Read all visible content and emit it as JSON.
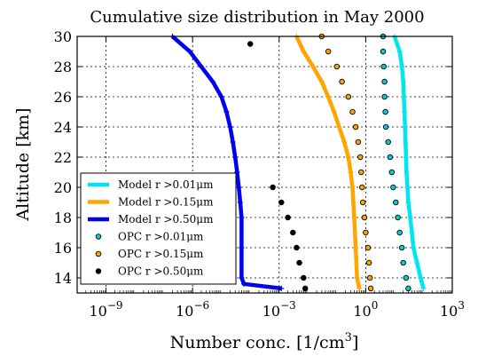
{
  "chart_data": {
    "type": "line",
    "title": "Cumulative size distribution in May 2000",
    "xlabel_main": "Number conc. [1/cm",
    "xlabel_sup": "3",
    "xlabel_end": "]",
    "ylabel": "Altitude [km]",
    "x_scale": "log",
    "xlim": [
      1e-10,
      1000
    ],
    "ylim": [
      13,
      30
    ],
    "x_ticks": [
      {
        "value": 1e-09,
        "base": "10",
        "exp": "−9"
      },
      {
        "value": 1e-06,
        "base": "10",
        "exp": "−6"
      },
      {
        "value": 0.001,
        "base": "10",
        "exp": "−3"
      },
      {
        "value": 1,
        "base": "10",
        "exp": "0"
      },
      {
        "value": 1000,
        "base": "10",
        "exp": "3"
      }
    ],
    "y_ticks": [
      14,
      16,
      18,
      20,
      22,
      24,
      26,
      28,
      30
    ],
    "grid": true,
    "legend_position": "lower-left",
    "series": [
      {
        "name": "Model r >0.01μm",
        "kind": "line",
        "color": "#00e5ee",
        "points": [
          [
            100.0,
            13.3
          ],
          [
            80,
            14
          ],
          [
            60,
            15
          ],
          [
            45,
            16
          ],
          [
            40,
            17
          ],
          [
            35,
            18
          ],
          [
            30,
            19
          ],
          [
            28,
            20
          ],
          [
            26,
            21
          ],
          [
            25,
            22
          ],
          [
            24,
            23
          ],
          [
            23,
            24
          ],
          [
            22,
            25
          ],
          [
            21,
            26
          ],
          [
            20,
            27
          ],
          [
            18,
            28
          ],
          [
            15,
            29
          ],
          [
            10,
            30
          ]
        ]
      },
      {
        "name": "Model r >0.15μm",
        "kind": "line",
        "color": "#ffa500",
        "points": [
          [
            0.6,
            13.3
          ],
          [
            0.5,
            14
          ],
          [
            0.45,
            16
          ],
          [
            0.4,
            18
          ],
          [
            0.35,
            20
          ],
          [
            0.3,
            21
          ],
          [
            0.25,
            22
          ],
          [
            0.18,
            23
          ],
          [
            0.12,
            24
          ],
          [
            0.08,
            25
          ],
          [
            0.05,
            26
          ],
          [
            0.03,
            27
          ],
          [
            0.015,
            28
          ],
          [
            0.007,
            29
          ],
          [
            0.004,
            30
          ]
        ]
      },
      {
        "name": "Model r >0.50μm",
        "kind": "line",
        "color": "#0000ee",
        "points": [
          [
            0.0012,
            13.3
          ],
          [
            6e-05,
            13.6
          ],
          [
            5e-05,
            14
          ],
          [
            5e-05,
            16
          ],
          [
            5e-05,
            18
          ],
          [
            4.5e-05,
            19
          ],
          [
            4e-05,
            20
          ],
          [
            3.5e-05,
            21
          ],
          [
            3e-05,
            22
          ],
          [
            2.5e-05,
            23
          ],
          [
            2e-05,
            24
          ],
          [
            1.5e-05,
            25
          ],
          [
            1e-05,
            26
          ],
          [
            5e-06,
            27
          ],
          [
            2e-06,
            28
          ],
          [
            8e-07,
            29
          ],
          [
            2e-07,
            30
          ]
        ]
      },
      {
        "name": "OPC r >0.01μm",
        "kind": "points",
        "color": "#00d0d0",
        "points": [
          [
            30,
            13.3
          ],
          [
            25,
            14
          ],
          [
            20,
            15
          ],
          [
            18,
            16
          ],
          [
            15,
            17
          ],
          [
            13,
            18
          ],
          [
            11,
            19
          ],
          [
            9,
            20
          ],
          [
            8,
            21
          ],
          [
            7,
            22
          ],
          [
            6,
            23
          ],
          [
            5,
            24
          ],
          [
            4.8,
            25
          ],
          [
            4.5,
            26
          ],
          [
            4.5,
            27
          ],
          [
            4.2,
            28
          ],
          [
            4,
            29
          ],
          [
            4,
            30
          ]
        ]
      },
      {
        "name": "OPC r >0.15μm",
        "kind": "points",
        "color": "#ffa500",
        "points": [
          [
            1.5,
            13.3
          ],
          [
            1.4,
            14
          ],
          [
            1.3,
            15
          ],
          [
            1.2,
            16
          ],
          [
            1.0,
            17
          ],
          [
            0.9,
            18
          ],
          [
            0.8,
            19
          ],
          [
            0.75,
            20
          ],
          [
            0.7,
            21
          ],
          [
            0.65,
            22
          ],
          [
            0.55,
            23
          ],
          [
            0.45,
            24
          ],
          [
            0.35,
            25
          ],
          [
            0.25,
            26
          ],
          [
            0.15,
            27
          ],
          [
            0.1,
            28
          ],
          [
            0.05,
            29
          ],
          [
            0.03,
            30
          ]
        ]
      },
      {
        "name": "OPC r >0.50μm",
        "kind": "points",
        "color": "#000000",
        "points": [
          [
            0.008,
            13.3
          ],
          [
            0.007,
            14
          ],
          [
            0.005,
            15
          ],
          [
            0.004,
            16
          ],
          [
            0.003,
            17
          ],
          [
            0.002,
            18
          ],
          [
            0.0012,
            19
          ],
          [
            0.0006,
            20
          ],
          [
            0.0001,
            29.5
          ]
        ]
      }
    ]
  }
}
